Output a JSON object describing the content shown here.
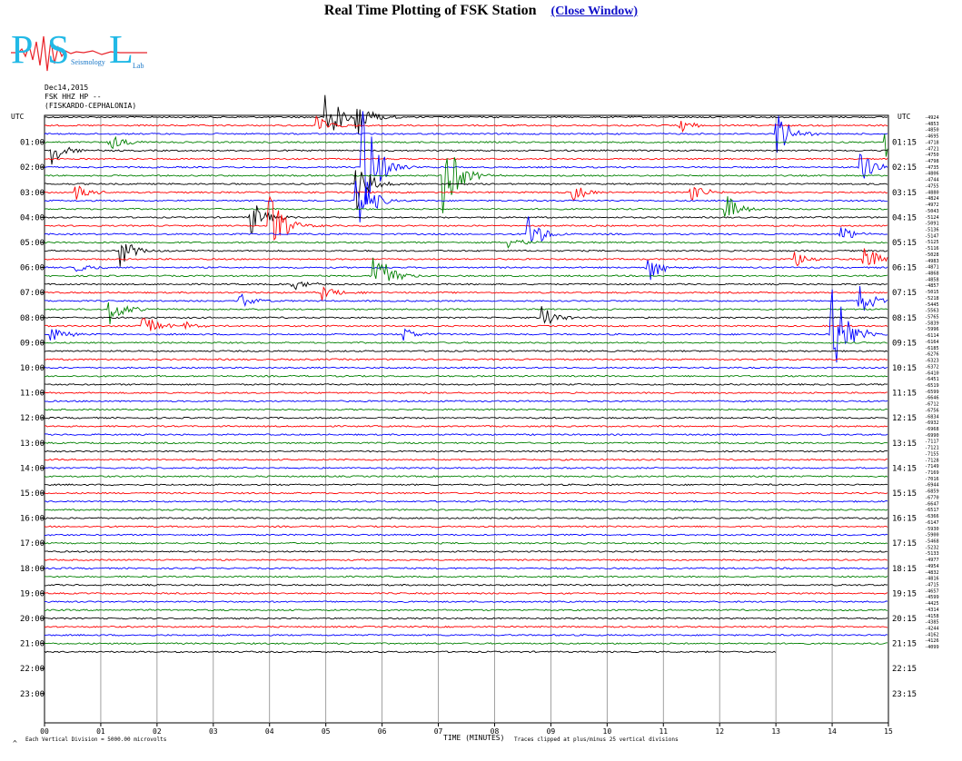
{
  "page": {
    "title": "Real Time Plotting of FSK Station",
    "close_link": "(Close Window)"
  },
  "logo": {
    "big_text_p": "P",
    "big_text_s": "S",
    "big_text_l": "L",
    "small_text": "Seismology",
    "small_lab": "Lab"
  },
  "header": {
    "date": "Dec14,2015",
    "channel": "FSK HHZ HP --",
    "location": "(FISKARDO-CEPHALONIA)"
  },
  "colors": [
    "#000000",
    "#ff0000",
    "#0000ff",
    "#008000"
  ],
  "chart_data": {
    "type": "line",
    "title": "Real Time Plotting of FSK Station",
    "xlabel": "TIME (MINUTES)",
    "ylabel": "",
    "x_ticks": [
      "00",
      "01",
      "02",
      "03",
      "04",
      "05",
      "06",
      "07",
      "08",
      "09",
      "10",
      "11",
      "12",
      "13",
      "14",
      "15"
    ],
    "xlim": [
      0,
      15
    ],
    "left_axis_label": "UTC",
    "right_axis_label": "UTC",
    "left_hour_labels": [
      "01:00",
      "02:00",
      "03:00",
      "04:00",
      "05:00",
      "06:00",
      "07:00",
      "08:00",
      "09:00",
      "10:00",
      "11:00",
      "12:00",
      "13:00",
      "14:00",
      "15:00",
      "16:00",
      "17:00",
      "18:00",
      "19:00",
      "20:00",
      "21:00",
      "22:00",
      "23:00"
    ],
    "right_hour_labels": [
      "01:15",
      "02:15",
      "03:15",
      "04:15",
      "05:15",
      "06:15",
      "07:15",
      "08:15",
      "09:15",
      "10:15",
      "11:15",
      "12:15",
      "13:15",
      "14:15",
      "15:15",
      "16:15",
      "17:15",
      "18:15",
      "19:15",
      "20:15",
      "21:15",
      "22:15",
      "23:15"
    ],
    "trace_offsets": [
      "4924",
      "4853",
      "4850",
      "4695",
      "4718",
      "4721",
      "4750",
      "4798",
      "4735",
      "4806",
      "4744",
      "4755",
      "4880",
      "4824",
      "4972",
      "5043",
      "5124",
      "5091",
      "5136",
      "5147",
      "5125",
      "5116",
      "5028",
      "4983",
      "4871",
      "4868",
      "4858",
      "4857",
      "5015",
      "5218",
      "5445",
      "5563",
      "5765",
      "5839",
      "5996",
      "6114",
      "6164",
      "6185",
      "6276",
      "6323",
      "6372",
      "6410",
      "6451",
      "6519",
      "6599",
      "6646",
      "6712",
      "6756",
      "6834",
      "6932",
      "6968",
      "6990",
      "7117",
      "7121",
      "7155",
      "7128",
      "7149",
      "7169",
      "7016",
      "6944",
      "6859",
      "6770",
      "6647",
      "6517",
      "6366",
      "6147",
      "5930",
      "5900",
      "5468",
      "5232",
      "5133",
      "4977",
      "4954",
      "4832",
      "4816",
      "4715",
      "4657",
      "4599",
      "4425",
      "4314",
      "4158",
      "4385",
      "4244",
      "4162",
      "4126",
      "4099"
    ],
    "events": [
      {
        "trace": 0,
        "minute": 5.0,
        "amplitude": 32
      },
      {
        "trace": 0,
        "minute": 5.55,
        "amplitude": 22
      },
      {
        "trace": 1,
        "minute": 4.85,
        "amplitude": 10
      },
      {
        "trace": 1,
        "minute": 11.3,
        "amplitude": 9
      },
      {
        "trace": 2,
        "minute": 13.0,
        "amplitude": 26
      },
      {
        "trace": 3,
        "minute": 1.15,
        "amplitude": 12
      },
      {
        "trace": 3,
        "minute": 14.95,
        "amplitude": 22
      },
      {
        "trace": 4,
        "minute": 0.15,
        "amplitude": 18
      },
      {
        "trace": 6,
        "minute": 5.65,
        "amplitude": 75
      },
      {
        "trace": 6,
        "minute": 14.5,
        "amplitude": 18
      },
      {
        "trace": 7,
        "minute": 7.1,
        "amplitude": 48
      },
      {
        "trace": 8,
        "minute": 5.55,
        "amplitude": 30
      },
      {
        "trace": 9,
        "minute": 0.55,
        "amplitude": 10
      },
      {
        "trace": 9,
        "minute": 9.4,
        "amplitude": 10
      },
      {
        "trace": 9,
        "minute": 11.5,
        "amplitude": 10
      },
      {
        "trace": 10,
        "minute": 5.55,
        "amplitude": 40
      },
      {
        "trace": 11,
        "minute": 12.1,
        "amplitude": 18
      },
      {
        "trace": 12,
        "minute": 3.65,
        "amplitude": 22
      },
      {
        "trace": 13,
        "minute": 4.0,
        "amplitude": 36
      },
      {
        "trace": 14,
        "minute": 8.6,
        "amplitude": 22
      },
      {
        "trace": 14,
        "minute": 14.15,
        "amplitude": 10
      },
      {
        "trace": 15,
        "minute": 8.25,
        "amplitude": 8
      },
      {
        "trace": 16,
        "minute": 1.35,
        "amplitude": 18
      },
      {
        "trace": 17,
        "minute": 13.35,
        "amplitude": 10
      },
      {
        "trace": 17,
        "minute": 14.55,
        "amplitude": 20
      },
      {
        "trace": 18,
        "minute": 0.55,
        "amplitude": 8
      },
      {
        "trace": 18,
        "minute": 10.7,
        "amplitude": 20
      },
      {
        "trace": 19,
        "minute": 5.85,
        "amplitude": 44
      },
      {
        "trace": 20,
        "minute": 4.4,
        "amplitude": 8
      },
      {
        "trace": 21,
        "minute": 4.95,
        "amplitude": 10
      },
      {
        "trace": 22,
        "minute": 3.45,
        "amplitude": 10
      },
      {
        "trace": 22,
        "minute": 14.45,
        "amplitude": 20
      },
      {
        "trace": 23,
        "minute": 1.15,
        "amplitude": 18
      },
      {
        "trace": 24,
        "minute": 8.85,
        "amplitude": 16
      },
      {
        "trace": 25,
        "minute": 1.75,
        "amplitude": 16
      },
      {
        "trace": 25,
        "minute": 2.5,
        "amplitude": 6
      },
      {
        "trace": 26,
        "minute": 0.1,
        "amplitude": 10
      },
      {
        "trace": 26,
        "minute": 6.4,
        "amplitude": 8
      },
      {
        "trace": 26,
        "minute": 14.0,
        "amplitude": 70
      }
    ]
  },
  "footer": {
    "left": "Each Vertical Division = 5000.00 microvolts",
    "center": "TIME (MINUTES)",
    "right": "Traces clipped at plus/minus 25 vertical divisions"
  }
}
